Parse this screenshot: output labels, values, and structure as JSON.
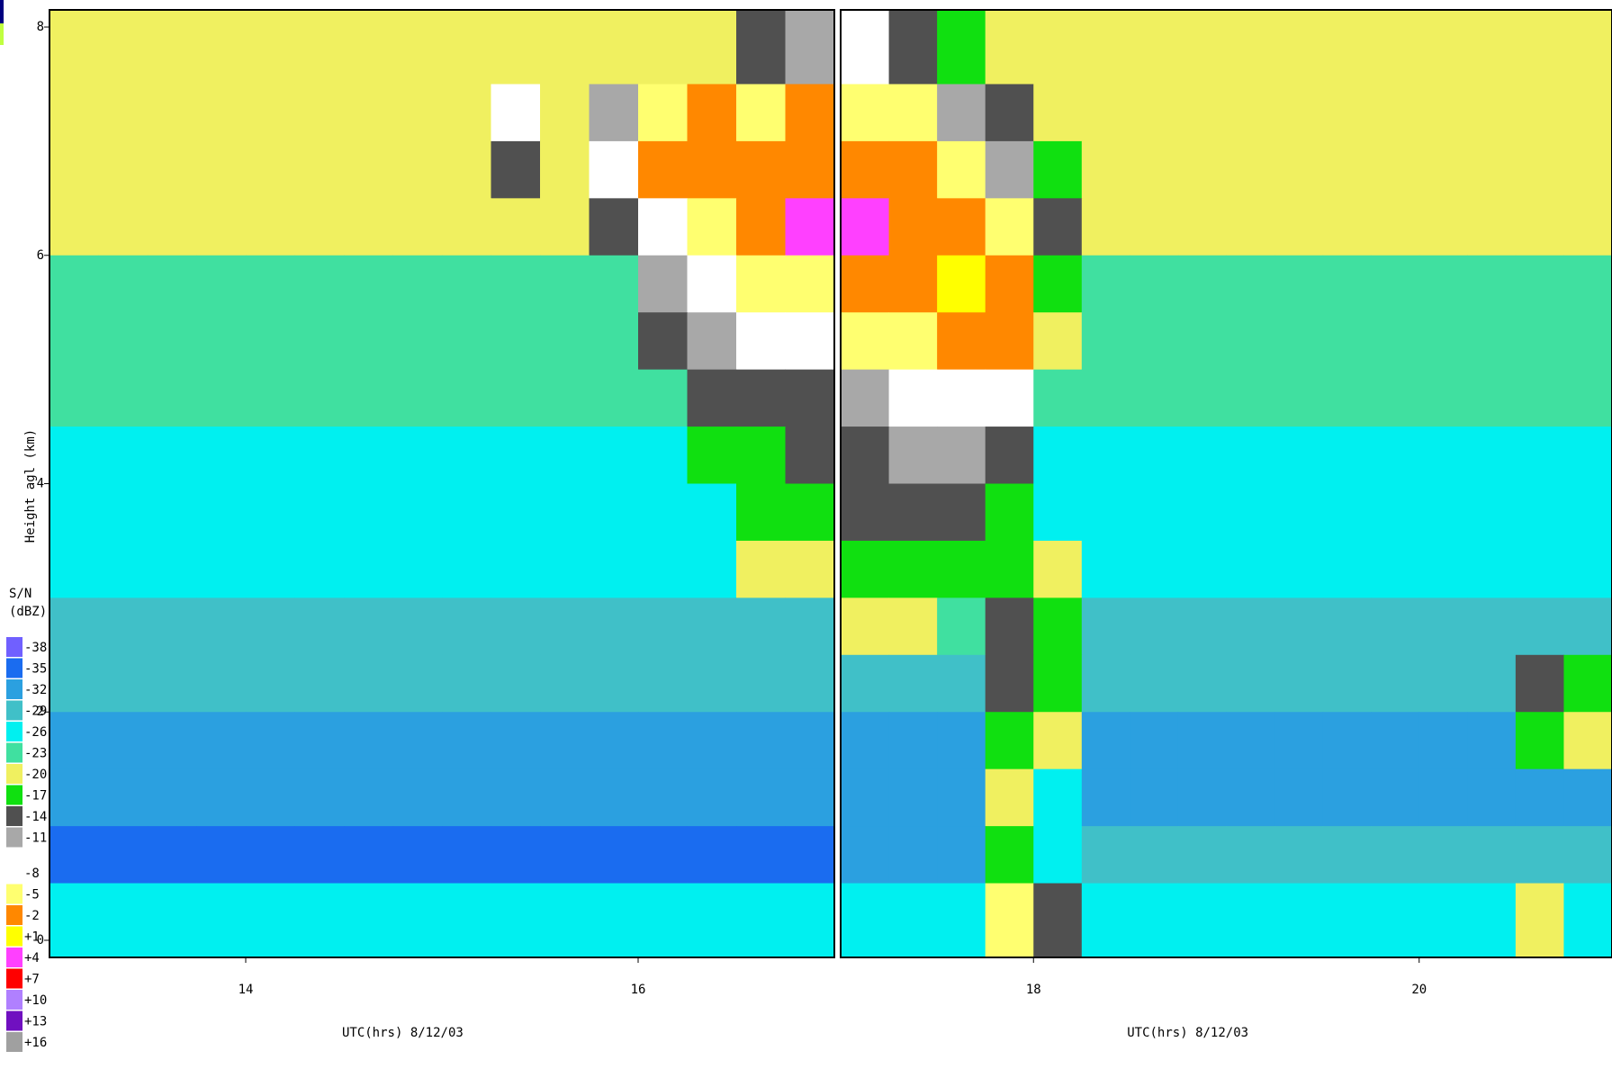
{
  "chart_data": {
    "type": "heatmap",
    "ylabel": "Height agl (km)",
    "ylim": [
      -0.15,
      8.15
    ],
    "yticks": [
      0,
      2,
      4,
      6,
      8
    ],
    "y": [
      7.75,
      7.25,
      6.75,
      6.25,
      5.75,
      5.25,
      4.75,
      4.25,
      3.75,
      3.25,
      2.75,
      2.25,
      1.75,
      1.25,
      0.75,
      0.25
    ],
    "colorbar": {
      "title": "S/N",
      "unit": "(dBZ)",
      "ticks": [
        -38,
        -35,
        -32,
        -29,
        -26,
        -23,
        -20,
        -17,
        -14,
        -11,
        -8,
        -5,
        -2,
        {
          "value": 1,
          "label": "+1"
        },
        {
          "value": 4,
          "label": "+4"
        },
        {
          "value": 7,
          "label": "+7"
        },
        {
          "value": 10,
          "label": "+10"
        },
        {
          "value": 13,
          "label": "+13"
        },
        {
          "value": 16,
          "label": "+16"
        }
      ],
      "colors": [
        "#7060ff",
        "#1a6cf0",
        "#2ba0e0",
        "#40c0c8",
        "#00f0f0",
        "#40e0a0",
        "#f0f060",
        "#10e010",
        "#505050",
        "#a8a8a8",
        "#ffffff",
        "#ffff70",
        "#ff8800",
        "#ffff00",
        "#ff40ff",
        "#ff0000",
        "#b080ff",
        "#7010c0",
        "#a0a0a0"
      ]
    },
    "panels": [
      {
        "xlabel": "UTC(hrs) 8/12/03",
        "xlim": [
          13,
          17
        ],
        "xticks": [
          14,
          16
        ],
        "x": [
          13.125,
          13.375,
          13.625,
          13.875,
          14.125,
          14.375,
          14.625,
          14.875,
          15.125,
          15.375,
          15.625,
          15.875,
          16.125,
          16.375,
          16.625,
          16.875
        ],
        "z": [
          [
            -18,
            -18,
            -18,
            -18,
            -18,
            -18,
            -18,
            -18,
            -18,
            -18,
            -18,
            -18,
            -18,
            -18,
            -14,
            -11
          ],
          [
            -18,
            -18,
            -18,
            -18,
            -18,
            -18,
            -18,
            -18,
            -18,
            -8,
            -18,
            -11,
            -5,
            -2,
            -5,
            -2
          ],
          [
            -19,
            -19,
            -19,
            -19,
            -19,
            -19,
            -19,
            -19,
            -19,
            -14,
            -19,
            -8,
            -2,
            -2,
            -2,
            -2
          ],
          [
            -20,
            -20,
            -20,
            -20,
            -20,
            -20,
            -20,
            -20,
            -20,
            -20,
            -20,
            -14,
            -8,
            -5,
            -2,
            4
          ],
          [
            -21,
            -21,
            -21,
            -21,
            -21,
            -21,
            -21,
            -21,
            -21,
            -21,
            -21,
            -21,
            -11,
            -8,
            -5,
            -5
          ],
          [
            -22,
            -22,
            -22,
            -22,
            -22,
            -22,
            -22,
            -22,
            -22,
            -22,
            -22,
            -22,
            -14,
            -11,
            -8,
            -8
          ],
          [
            -23,
            -23,
            -23,
            -23,
            -23,
            -23,
            -23,
            -23,
            -23,
            -23,
            -23,
            -23,
            -23,
            -14,
            -14,
            -14
          ],
          [
            -24,
            -24,
            -24,
            -24,
            -24,
            -24,
            -24,
            -24,
            -24,
            -24,
            -24,
            -24,
            -24,
            -17,
            -17,
            -14
          ],
          [
            -25,
            -25,
            -25,
            -25,
            -25,
            -25,
            -25,
            -25,
            -25,
            -25,
            -25,
            -25,
            -25,
            -25,
            -17,
            -17
          ],
          [
            -26,
            -26,
            -26,
            -26,
            -26,
            -26,
            -26,
            -26,
            -26,
            -26,
            -26,
            -26,
            -26,
            -26,
            -20,
            -19
          ],
          [
            -27,
            -27,
            -27,
            -27,
            -27,
            -27,
            -27,
            -27,
            -27,
            -27,
            -27,
            -27,
            -27,
            -27,
            -27,
            -27
          ],
          [
            -28,
            -28,
            -28,
            -28,
            -28,
            -28,
            -28,
            -28,
            -28,
            -28,
            -28,
            -28,
            -28,
            -28,
            -28,
            -28
          ],
          [
            -30,
            -30,
            -30,
            -30,
            -30,
            -30,
            -30,
            -30,
            -30,
            -30,
            -30,
            -30,
            -30,
            -30,
            -30,
            -30
          ],
          [
            -32,
            -32,
            -32,
            -32,
            -32,
            -32,
            -32,
            -32,
            -32,
            -32,
            -32,
            -32,
            -32,
            -32,
            -32,
            -32
          ],
          [
            -34,
            -34,
            -34,
            -34,
            -34,
            -34,
            -34,
            -34,
            -34,
            -34,
            -34,
            -34,
            -34,
            -34,
            -34,
            -34
          ],
          [
            -24,
            -24,
            -24,
            -24,
            -24,
            -24,
            -24,
            -24,
            -24,
            -24,
            -24,
            -24,
            -24,
            -24,
            -24,
            -24
          ]
        ]
      },
      {
        "xlabel": "UTC(hrs) 8/12/03",
        "xlim": [
          17,
          21
        ],
        "xticks": [
          18,
          20
        ],
        "x": [
          17.125,
          17.375,
          17.625,
          17.875,
          18.125,
          18.375,
          18.625,
          18.875,
          19.125,
          19.375,
          19.625,
          19.875,
          20.125,
          20.375,
          20.625,
          20.875
        ],
        "z": [
          [
            -8,
            -14,
            -17,
            -18,
            -18,
            -18,
            -18,
            -18,
            -18,
            -18,
            -18,
            -18,
            -18,
            -18,
            -18,
            -18
          ],
          [
            -5,
            -5,
            -11,
            -14,
            -18,
            -18,
            -18,
            -18,
            -18,
            -18,
            -18,
            -18,
            -18,
            -18,
            -18,
            -18
          ],
          [
            -2,
            -2,
            -5,
            -11,
            -17,
            -19,
            -19,
            -19,
            -19,
            -19,
            -19,
            -19,
            -19,
            -19,
            -19,
            -19
          ],
          [
            4,
            -2,
            -2,
            -5,
            -14,
            -20,
            -20,
            -20,
            -20,
            -20,
            -20,
            -20,
            -20,
            -20,
            -20,
            -20
          ],
          [
            -2,
            -2,
            1,
            -2,
            -17,
            -21,
            -21,
            -21,
            -21,
            -21,
            -21,
            -21,
            -21,
            -21,
            -21,
            -21
          ],
          [
            -5,
            -5,
            -2,
            -2,
            -19,
            -22,
            -22,
            -22,
            -22,
            -22,
            -22,
            -22,
            -22,
            -22,
            -22,
            -22
          ],
          [
            -11,
            -8,
            -8,
            -8,
            -23,
            -23,
            -23,
            -23,
            -23,
            -23,
            -23,
            -23,
            -23,
            -23,
            -23,
            -23
          ],
          [
            -14,
            -11,
            -11,
            -14,
            -24,
            -24,
            -24,
            -24,
            -24,
            -24,
            -24,
            -24,
            -24,
            -24,
            -24,
            -24
          ],
          [
            -14,
            -14,
            -14,
            -17,
            -25,
            -25,
            -25,
            -25,
            -25,
            -25,
            -25,
            -25,
            -25,
            -25,
            -25,
            -25
          ],
          [
            -17,
            -17,
            -17,
            -17,
            -19,
            -26,
            -26,
            -26,
            -26,
            -26,
            -26,
            -26,
            -26,
            -26,
            -26,
            -26
          ],
          [
            -19,
            -20,
            -21,
            -14,
            -17,
            -27,
            -27,
            -27,
            -27,
            -27,
            -27,
            -27,
            -27,
            -27,
            -27,
            -27
          ],
          [
            -28,
            -28,
            -28,
            -14,
            -17,
            -28,
            -28,
            -28,
            -28,
            -28,
            -28,
            -28,
            -28,
            -28,
            -14,
            -17
          ],
          [
            -30,
            -30,
            -30,
            -17,
            -19,
            -30,
            -30,
            -30,
            -30,
            -30,
            -30,
            -30,
            -30,
            -30,
            -17,
            -19
          ],
          [
            -32,
            -32,
            -32,
            -19,
            -24,
            -32,
            -32,
            -32,
            -32,
            -32,
            -32,
            -32,
            -32,
            -32,
            -32,
            -32
          ],
          [
            -32,
            -32,
            -32,
            -17,
            -24,
            -27,
            -27,
            -27,
            -27,
            -27,
            -27,
            -27,
            -27,
            -27,
            -27,
            -27
          ],
          [
            -24,
            -24,
            -24,
            -5,
            -14,
            -24,
            -24,
            -24,
            -24,
            -24,
            -24,
            -24,
            -24,
            -24,
            -20,
            -24
          ]
        ]
      }
    ]
  }
}
